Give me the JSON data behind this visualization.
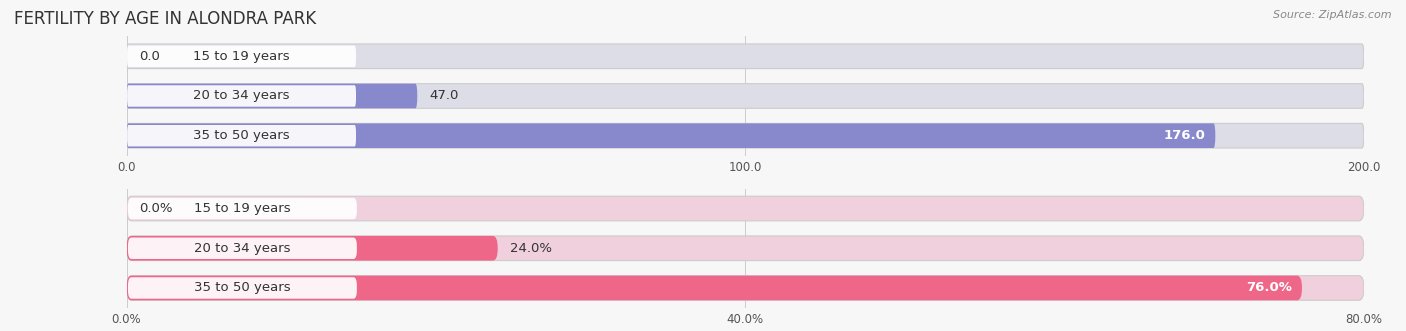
{
  "title": "FERTILITY BY AGE IN ALONDRA PARK",
  "source": "Source: ZipAtlas.com",
  "top_bars": {
    "categories": [
      "15 to 19 years",
      "20 to 34 years",
      "35 to 50 years"
    ],
    "values": [
      0.0,
      47.0,
      176.0
    ],
    "xlim": [
      0,
      200
    ],
    "xticks": [
      0.0,
      100.0,
      200.0
    ],
    "xtick_labels": [
      "0.0",
      "100.0",
      "200.0"
    ],
    "bar_color": "#8888cc",
    "bg_color": "#dddde8",
    "value_labels": [
      "0.0",
      "47.0",
      "176.0"
    ],
    "value_label_inside": [
      false,
      false,
      true
    ]
  },
  "bottom_bars": {
    "categories": [
      "15 to 19 years",
      "20 to 34 years",
      "35 to 50 years"
    ],
    "values": [
      0.0,
      24.0,
      76.0
    ],
    "xlim": [
      0,
      80
    ],
    "xticks": [
      0.0,
      40.0,
      80.0
    ],
    "xtick_labels": [
      "0.0%",
      "40.0%",
      "80.0%"
    ],
    "bar_color": "#ee6688",
    "bg_color": "#f0d0dc",
    "value_labels": [
      "0.0%",
      "24.0%",
      "76.0%"
    ],
    "value_label_inside": [
      false,
      false,
      true
    ]
  },
  "background_color": "#f7f7f7",
  "bar_height": 0.62,
  "label_fontsize": 9.5,
  "tick_fontsize": 8.5,
  "title_fontsize": 12,
  "source_fontsize": 8
}
